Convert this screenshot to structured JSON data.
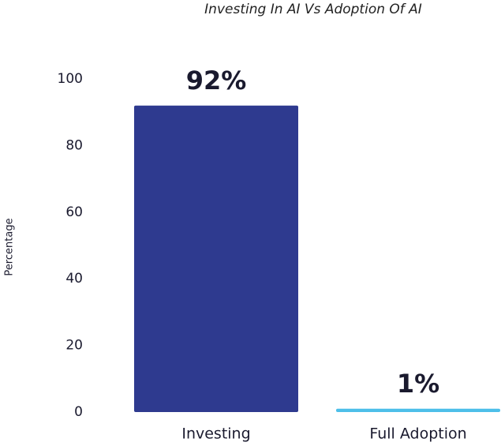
{
  "chart_data": {
    "type": "bar",
    "title": "Investing In AI Vs Adoption Of AI",
    "ylabel": "Percentage",
    "categories": [
      "Investing",
      "Full Adoption"
    ],
    "values": [
      92,
      1
    ],
    "value_labels": [
      "92%",
      "1%"
    ],
    "colors": [
      "#2e3a8f",
      "#4dbfe9"
    ],
    "ylim": [
      0,
      100
    ],
    "yticks": [
      0,
      20,
      40,
      60,
      80,
      100
    ],
    "grid": false
  }
}
